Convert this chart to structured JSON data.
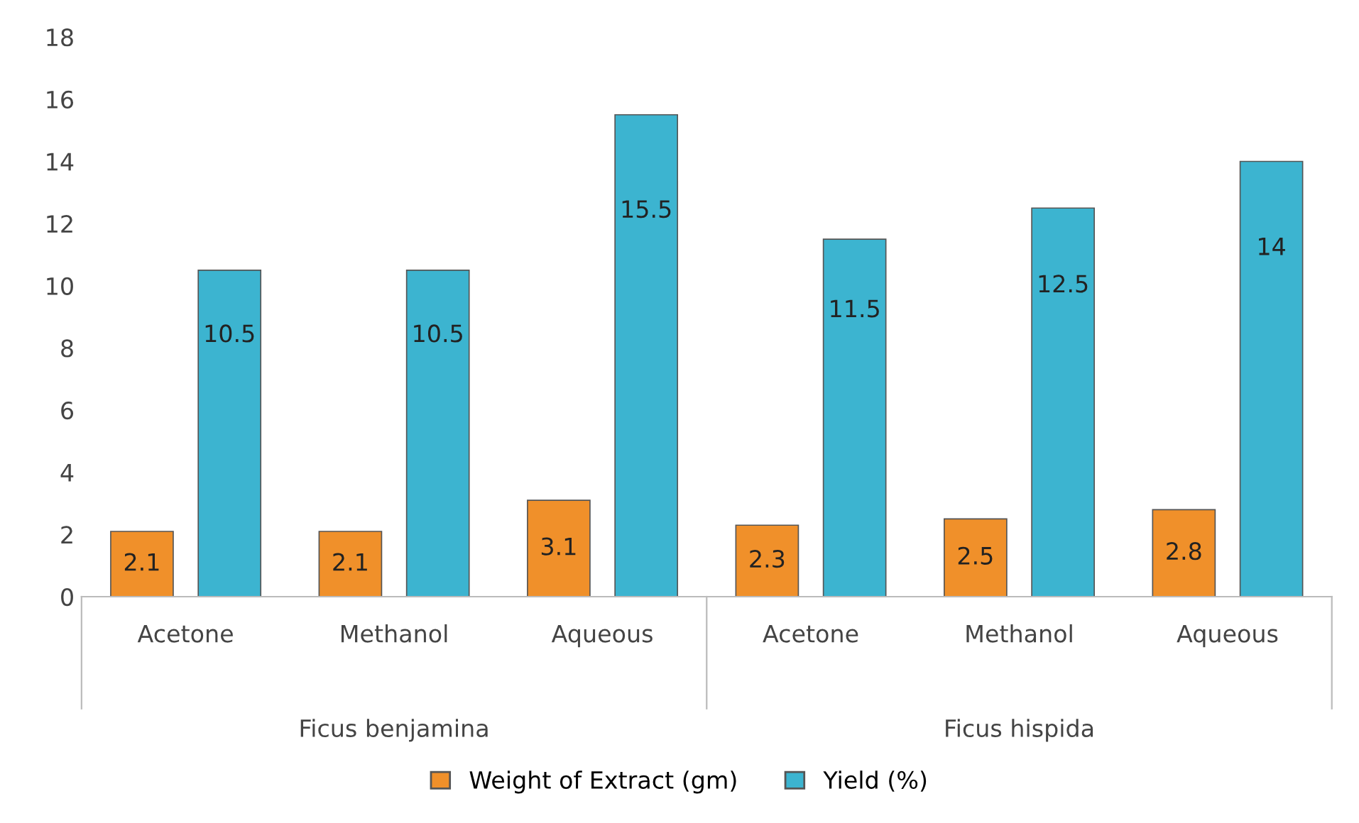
{
  "chart_data": {
    "type": "bar",
    "categories": [
      "Acetone",
      "Methanol",
      "Aqueous",
      "Acetone",
      "Methanol",
      "Aqueous"
    ],
    "series": [
      {
        "name": "Weight of Extract (gm)",
        "color": "#f0902a",
        "values": [
          2.1,
          2.1,
          3.1,
          2.3,
          2.5,
          2.8
        ]
      },
      {
        "name": "Yield (%)",
        "color": "#3cb4d0",
        "values": [
          10.5,
          10.5,
          15.5,
          11.5,
          12.5,
          14
        ]
      }
    ],
    "ylim": [
      0,
      18
    ],
    "yticks": [
      0,
      2,
      4,
      6,
      8,
      10,
      12,
      14,
      16,
      18
    ],
    "grid": false,
    "legend": "bottom",
    "data_labels": true,
    "annotations": [
      "Ficus benjamina",
      "Ficus hispida"
    ]
  }
}
